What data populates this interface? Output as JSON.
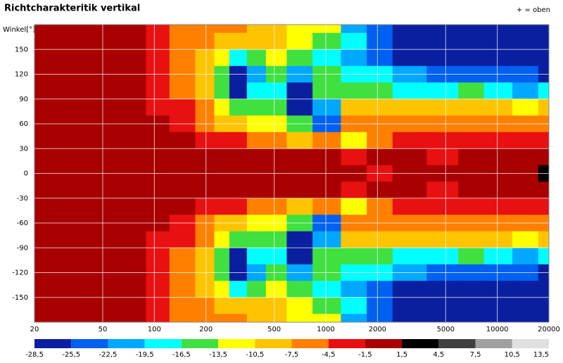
{
  "chart_data": {
    "type": "heatmap",
    "title": "Richtcharakteritik vertikal",
    "note": "+ = oben",
    "ylabel": "Winkel[°]",
    "x": [
      20,
      30,
      40,
      60,
      80,
      100,
      150,
      200,
      250,
      300,
      400,
      500,
      700,
      1000,
      1500,
      2000,
      3000,
      5000,
      7000,
      10000,
      15000,
      20000
    ],
    "y": [
      180,
      160,
      140,
      120,
      100,
      80,
      60,
      40,
      20,
      0,
      -20,
      -40,
      -60,
      -80,
      -100,
      -120,
      -140,
      -160,
      -180
    ],
    "values": [
      [
        0,
        0,
        0,
        0,
        0,
        -3,
        -6,
        -6,
        -6,
        -6,
        -9,
        -9,
        -12,
        -12,
        -21,
        -24,
        -27,
        -27,
        -27,
        -27,
        -27,
        -27
      ],
      [
        0,
        0,
        0,
        0,
        0,
        -3,
        -6,
        -6,
        -9,
        -9,
        -9,
        -9,
        -12,
        -15,
        -18,
        -24,
        -27,
        -27,
        -27,
        -27,
        -27,
        -27
      ],
      [
        0,
        0,
        0,
        0,
        0,
        -3,
        -6,
        -9,
        -12,
        -18,
        -15,
        -12,
        -15,
        -18,
        -21,
        -24,
        -27,
        -27,
        -27,
        -27,
        -27,
        -27
      ],
      [
        0,
        0,
        0,
        0,
        0,
        -3,
        -6,
        -9,
        -15,
        -27,
        -21,
        -15,
        -21,
        -15,
        -18,
        -18,
        -21,
        -24,
        -24,
        -24,
        -24,
        -27
      ],
      [
        0,
        0,
        0,
        0,
        0,
        -3,
        -6,
        -9,
        -15,
        -27,
        -18,
        -18,
        -27,
        -15,
        -15,
        -15,
        -18,
        -18,
        -15,
        -18,
        -21,
        -18
      ],
      [
        0,
        0,
        0,
        0,
        0,
        -3,
        -3,
        -6,
        -12,
        -15,
        -15,
        -15,
        -27,
        -21,
        -9,
        -9,
        -9,
        -9,
        -9,
        -9,
        -12,
        -9
      ],
      [
        0,
        0,
        0,
        0,
        0,
        0,
        -3,
        -6,
        -9,
        -9,
        -12,
        -12,
        -15,
        -24,
        -6,
        -6,
        -6,
        -6,
        -6,
        -6,
        -6,
        -6
      ],
      [
        0,
        0,
        0,
        0,
        0,
        0,
        0,
        -3,
        -3,
        -3,
        -6,
        -6,
        -9,
        -6,
        -12,
        -6,
        -3,
        -3,
        -3,
        -3,
        -3,
        -3
      ],
      [
        0,
        0,
        0,
        0,
        0,
        0,
        0,
        0,
        0,
        0,
        0,
        0,
        0,
        0,
        -3,
        0,
        0,
        -3,
        0,
        0,
        0,
        0
      ],
      [
        0,
        0,
        0,
        0,
        0,
        0,
        0,
        0,
        0,
        0,
        0,
        0,
        0,
        0,
        0,
        -3,
        0,
        0,
        0,
        0,
        0,
        3
      ],
      [
        0,
        0,
        0,
        0,
        0,
        0,
        0,
        0,
        0,
        0,
        0,
        0,
        0,
        0,
        -3,
        0,
        0,
        -3,
        0,
        0,
        0,
        0
      ],
      [
        0,
        0,
        0,
        0,
        0,
        0,
        0,
        -3,
        -3,
        -3,
        -6,
        -6,
        -9,
        -6,
        -12,
        -6,
        -3,
        -3,
        -3,
        -3,
        -3,
        -3
      ],
      [
        0,
        0,
        0,
        0,
        0,
        0,
        -3,
        -6,
        -9,
        -9,
        -12,
        -12,
        -15,
        -24,
        -6,
        -6,
        -6,
        -6,
        -6,
        -6,
        -6,
        -6
      ],
      [
        0,
        0,
        0,
        0,
        0,
        -3,
        -3,
        -6,
        -12,
        -15,
        -15,
        -15,
        -27,
        -21,
        -9,
        -9,
        -9,
        -9,
        -9,
        -9,
        -12,
        -9
      ],
      [
        0,
        0,
        0,
        0,
        0,
        -3,
        -6,
        -9,
        -15,
        -27,
        -18,
        -18,
        -27,
        -15,
        -15,
        -15,
        -18,
        -18,
        -15,
        -18,
        -21,
        -18
      ],
      [
        0,
        0,
        0,
        0,
        0,
        -3,
        -6,
        -9,
        -15,
        -27,
        -21,
        -15,
        -21,
        -15,
        -18,
        -18,
        -21,
        -24,
        -24,
        -24,
        -24,
        -27
      ],
      [
        0,
        0,
        0,
        0,
        0,
        -3,
        -6,
        -9,
        -12,
        -18,
        -15,
        -12,
        -15,
        -18,
        -21,
        -24,
        -27,
        -27,
        -27,
        -27,
        -27,
        -27
      ],
      [
        0,
        0,
        0,
        0,
        0,
        -3,
        -6,
        -6,
        -9,
        -9,
        -9,
        -9,
        -12,
        -15,
        -18,
        -24,
        -27,
        -27,
        -27,
        -27,
        -27,
        -27
      ],
      [
        0,
        0,
        0,
        0,
        0,
        -3,
        -6,
        -6,
        -6,
        -6,
        -9,
        -9,
        -12,
        -12,
        -21,
        -24,
        -27,
        -27,
        -27,
        -27,
        -27,
        -27
      ]
    ],
    "xlim": [
      20,
      20000
    ],
    "xscale": "log",
    "xticks": [
      20,
      50,
      100,
      200,
      500,
      1000,
      2000,
      5000,
      10000,
      20000
    ],
    "ylim": [
      -180,
      180
    ],
    "yticks": [
      150,
      120,
      90,
      60,
      30,
      0,
      -30,
      -60,
      -90,
      -120,
      -150
    ],
    "grid": true,
    "colorbar": {
      "ticks": [
        {
          "value": -28.5,
          "label": "-28,5"
        },
        {
          "value": -25.5,
          "label": "-25,5"
        },
        {
          "value": -22.5,
          "label": "-22,5"
        },
        {
          "value": -19.5,
          "label": "-19,5"
        },
        {
          "value": -16.5,
          "label": "-16,5"
        },
        {
          "value": -13.5,
          "label": "-13,5"
        },
        {
          "value": -10.5,
          "label": "-10,5"
        },
        {
          "value": -7.5,
          "label": "-7,5"
        },
        {
          "value": -4.5,
          "label": "-4,5"
        },
        {
          "value": -1.5,
          "label": "-1,5"
        },
        {
          "value": 1.5,
          "label": "1,5"
        },
        {
          "value": 4.5,
          "label": "4,5"
        },
        {
          "value": 7.5,
          "label": "7,5"
        },
        {
          "value": 10.5,
          "label": "10,5"
        },
        {
          "value": 13.5,
          "label": "13,5"
        }
      ],
      "colors": [
        "#0a1fa0",
        "#0060f0",
        "#00a8ff",
        "#00ffff",
        "#40e040",
        "#ffff00",
        "#ffc400",
        "#ff8000",
        "#e81010",
        "#a80000",
        "#000000",
        "#404040",
        "#a0a0a0",
        "#e0e0e0"
      ]
    }
  }
}
